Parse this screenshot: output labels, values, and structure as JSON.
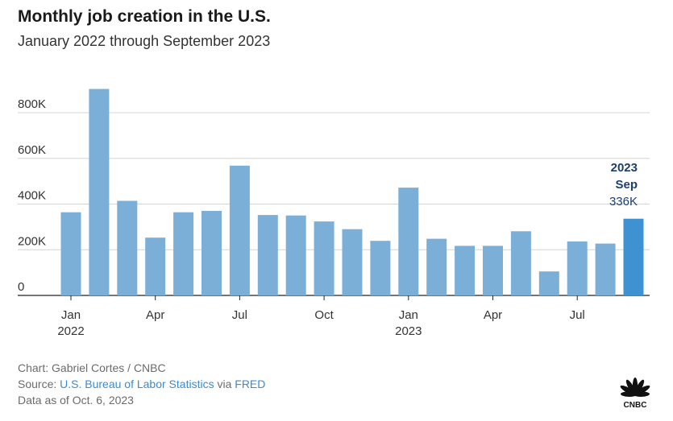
{
  "title": "Monthly job creation in the U.S.",
  "subtitle": "January 2022 through September 2023",
  "chart_data": {
    "type": "bar",
    "categories": [
      "Jan 2022",
      "Feb 2022",
      "Mar 2022",
      "Apr 2022",
      "May 2022",
      "Jun 2022",
      "Jul 2022",
      "Aug 2022",
      "Sep 2022",
      "Oct 2022",
      "Nov 2022",
      "Dec 2022",
      "Jan 2023",
      "Feb 2023",
      "Mar 2023",
      "Apr 2023",
      "May 2023",
      "Jun 2023",
      "Jul 2023",
      "Aug 2023",
      "Sep 2023"
    ],
    "values": [
      364,
      904,
      414,
      253,
      364,
      370,
      568,
      352,
      350,
      324,
      290,
      239,
      472,
      248,
      217,
      217,
      281,
      105,
      236,
      227,
      336
    ],
    "yticks": [
      "0",
      "200K",
      "400K",
      "600K",
      "800K"
    ],
    "ytick_values": [
      0,
      200,
      400,
      600,
      800
    ],
    "ylim": [
      0,
      960
    ],
    "xtick_labels": [
      {
        "index": 0,
        "month": "Jan",
        "year": "2022"
      },
      {
        "index": 3,
        "month": "Apr",
        "year": ""
      },
      {
        "index": 6,
        "month": "Jul",
        "year": ""
      },
      {
        "index": 9,
        "month": "Oct",
        "year": ""
      },
      {
        "index": 12,
        "month": "Jan",
        "year": "2023"
      },
      {
        "index": 15,
        "month": "Apr",
        "year": ""
      },
      {
        "index": 18,
        "month": "Jul",
        "year": ""
      }
    ],
    "annotation": {
      "year": "2023",
      "month": "Sep",
      "value": "336K"
    },
    "bar_color": "#7bafd8",
    "highlight_color": "#3f92d2",
    "grid": true
  },
  "footer": {
    "chart_credit": "Chart: Gabriel Cortes / CNBC",
    "source_prefix": "Source: ",
    "source_link1": "U.S. Bureau of Labor Statistics",
    "source_via": " via ",
    "source_link2": "FRED",
    "data_as_of": "Data as of Oct. 6, 2023"
  },
  "logo": {
    "text": "CNBC",
    "icon": "cnbc-peacock-icon"
  }
}
